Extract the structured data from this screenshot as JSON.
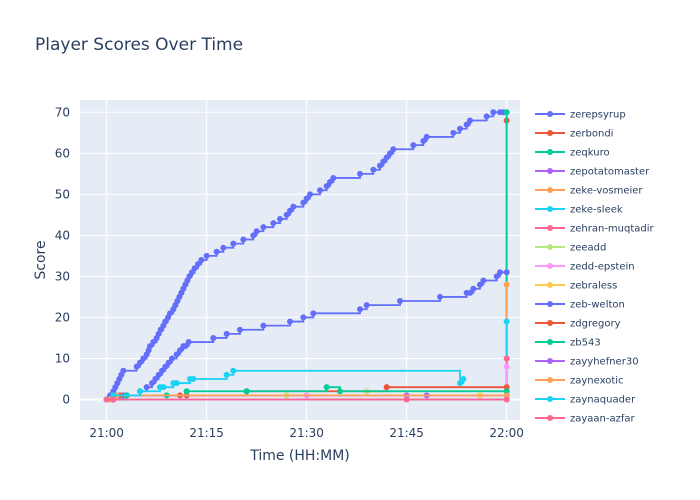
{
  "chart_data": {
    "type": "line",
    "title": "Player Scores Over Time",
    "xlabel": "Time (HH:MM)",
    "ylabel": "Score",
    "x_unit": "minutes after 21:00",
    "xlim": [
      -4,
      62
    ],
    "ylim": [
      -5,
      73
    ],
    "x_ticks": [
      {
        "value": 0,
        "label": "21:00"
      },
      {
        "value": 15,
        "label": "21:15"
      },
      {
        "value": 30,
        "label": "21:30"
      },
      {
        "value": 45,
        "label": "21:45"
      },
      {
        "value": 60,
        "label": "22:00"
      }
    ],
    "y_ticks": [
      0,
      10,
      20,
      30,
      40,
      50,
      60,
      70
    ],
    "grid": true,
    "legend_position": "right",
    "series": [
      {
        "name": "zerepsyrup",
        "color": "#636efa",
        "x": [
          0,
          0.5,
          1,
          1.3,
          1.6,
          1.9,
          2.2,
          2.5,
          4.5,
          5,
          5.5,
          6,
          6.3,
          6.5,
          7,
          7.5,
          7.8,
          8.1,
          8.5,
          8.8,
          9.2,
          9.5,
          10,
          10.3,
          10.6,
          10.9,
          11.2,
          11.5,
          11.8,
          12.1,
          12.4,
          12.8,
          13.2,
          13.7,
          14.2,
          15,
          16.5,
          17.5,
          19,
          20.5,
          22,
          22.5,
          23.5,
          25,
          26,
          27,
          27.5,
          28,
          29.5,
          30,
          30.5,
          32,
          33,
          33.5,
          34,
          38,
          40,
          41,
          41.5,
          42,
          42.5,
          43,
          46,
          47.5,
          48,
          52,
          53,
          54,
          54.5,
          57,
          58,
          59,
          59.5
        ],
        "y": [
          0,
          1,
          2,
          3,
          4,
          5,
          6,
          7,
          8,
          9,
          10,
          11,
          12,
          13,
          14,
          15,
          16,
          17,
          18,
          19,
          20,
          21,
          22,
          23,
          24,
          25,
          26,
          27,
          28,
          29,
          30,
          31,
          32,
          33,
          34,
          35,
          36,
          37,
          38,
          39,
          40,
          41,
          42,
          43,
          44,
          45,
          46,
          47,
          48,
          49,
          50,
          51,
          52,
          53,
          54,
          55,
          56,
          57,
          58,
          59,
          60,
          61,
          62,
          63,
          64,
          65,
          66,
          67,
          68,
          69,
          70,
          70,
          70
        ]
      },
      {
        "name": "zerbondi",
        "color": "#ef553b",
        "x": [
          0,
          60
        ],
        "y": [
          0,
          68
        ]
      },
      {
        "name": "zeqkuro",
        "color": "#00cc96",
        "x": [
          0,
          60
        ],
        "y": [
          0,
          70
        ]
      },
      {
        "name": "zepotatomaster",
        "color": "#ab63fa",
        "x": [
          0,
          1,
          2,
          12,
          45,
          48,
          60
        ],
        "y": [
          0,
          0,
          1,
          1,
          1,
          1,
          1
        ]
      },
      {
        "name": "zeke-vosmeier",
        "color": "#ffa15a",
        "x": [
          0,
          60
        ],
        "y": [
          0,
          28
        ]
      },
      {
        "name": "zeke-sleek",
        "color": "#19d3f3",
        "x": [
          0,
          60
        ],
        "y": [
          0,
          19
        ]
      },
      {
        "name": "zehran-muqtadir",
        "color": "#ff6692",
        "x": [
          0,
          1,
          45,
          60
        ],
        "y": [
          0,
          0,
          0,
          10
        ]
      },
      {
        "name": "zeeadd",
        "color": "#b6e880",
        "x": [
          0,
          27,
          30,
          39,
          60
        ],
        "y": [
          0,
          1,
          1,
          2,
          2
        ]
      },
      {
        "name": "zedd-epstein",
        "color": "#ff97ff",
        "x": [
          0,
          1,
          30,
          60
        ],
        "y": [
          0,
          0,
          1,
          8
        ]
      },
      {
        "name": "zebraless",
        "color": "#fecb52",
        "x": [
          0,
          1,
          56,
          60
        ],
        "y": [
          0,
          1,
          1,
          1
        ]
      },
      {
        "name": "zeb-welton",
        "color": "#636efa",
        "x": [
          0,
          1,
          2.5,
          3,
          5,
          6,
          6.8,
          7.3,
          7.8,
          8.3,
          8.8,
          9.3,
          9.8,
          10.5,
          11,
          11.5,
          11.8,
          12.3,
          16,
          18,
          20,
          23.5,
          27.5,
          29.5,
          31,
          38,
          39,
          44,
          50,
          54,
          54.5,
          55,
          56,
          56.5,
          58.5,
          59,
          60
        ],
        "y": [
          0,
          0,
          1,
          1,
          2,
          3,
          4,
          5,
          6,
          7,
          8,
          9,
          10,
          11,
          12,
          13,
          13,
          14,
          15,
          16,
          17,
          18,
          19,
          20,
          21,
          22,
          23,
          24,
          25,
          26,
          26,
          27,
          28,
          29,
          30,
          31,
          31
        ]
      },
      {
        "name": "zdgregory",
        "color": "#ef553b",
        "x": [
          0,
          1,
          2,
          3,
          11,
          12,
          21,
          42,
          60
        ],
        "y": [
          0,
          0,
          1,
          1,
          1,
          1,
          2,
          3,
          3
        ]
      },
      {
        "name": "zb543",
        "color": "#00cc96",
        "x": [
          0,
          1,
          3,
          9,
          12,
          21,
          33,
          35,
          60
        ],
        "y": [
          0,
          0,
          1,
          1,
          2,
          2,
          3,
          2,
          2
        ]
      },
      {
        "name": "zayyhefner30",
        "color": "#ab63fa",
        "x": [
          0,
          1,
          1.5,
          60
        ],
        "y": [
          0,
          0,
          1,
          1
        ]
      },
      {
        "name": "zaynexotic",
        "color": "#ffa15a",
        "x": [
          0,
          0.5,
          1.5,
          60
        ],
        "y": [
          0,
          0,
          1,
          1
        ]
      },
      {
        "name": "zaynaquader",
        "color": "#19d3f3",
        "x": [
          0,
          1,
          5,
          8,
          8.5,
          10,
          10.5,
          12.5,
          13,
          18,
          19,
          53,
          53.5
        ],
        "y": [
          0,
          1,
          2,
          3,
          3,
          4,
          4,
          5,
          5,
          6,
          7,
          4,
          5
        ]
      },
      {
        "name": "zayaan-azfar",
        "color": "#ff6692",
        "x": [
          0,
          1,
          60
        ],
        "y": [
          0,
          0,
          0
        ]
      }
    ]
  }
}
